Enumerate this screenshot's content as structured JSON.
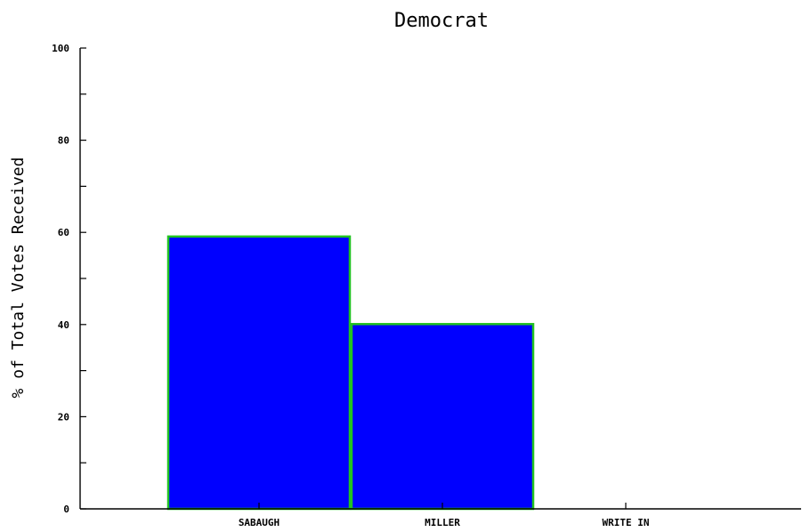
{
  "chart_data": {
    "type": "bar",
    "title": "Democrat",
    "xlabel": "",
    "ylabel": "% of Total Votes Received",
    "categories": [
      "SABAUGH",
      "MILLER",
      "WRITE IN"
    ],
    "values": [
      59.1,
      40.1,
      0.0
    ],
    "ylim": [
      0,
      100
    ],
    "y_ticks": [
      0,
      20,
      40,
      60,
      80,
      100
    ],
    "y_ticks_minor": [
      10,
      30,
      50,
      70,
      90
    ],
    "grid": false,
    "colors": {
      "bar_fill": "#0000ff",
      "bar_stroke": "#22c322",
      "axis": "#000000",
      "text": "#000000",
      "background": "#ffffff"
    }
  }
}
